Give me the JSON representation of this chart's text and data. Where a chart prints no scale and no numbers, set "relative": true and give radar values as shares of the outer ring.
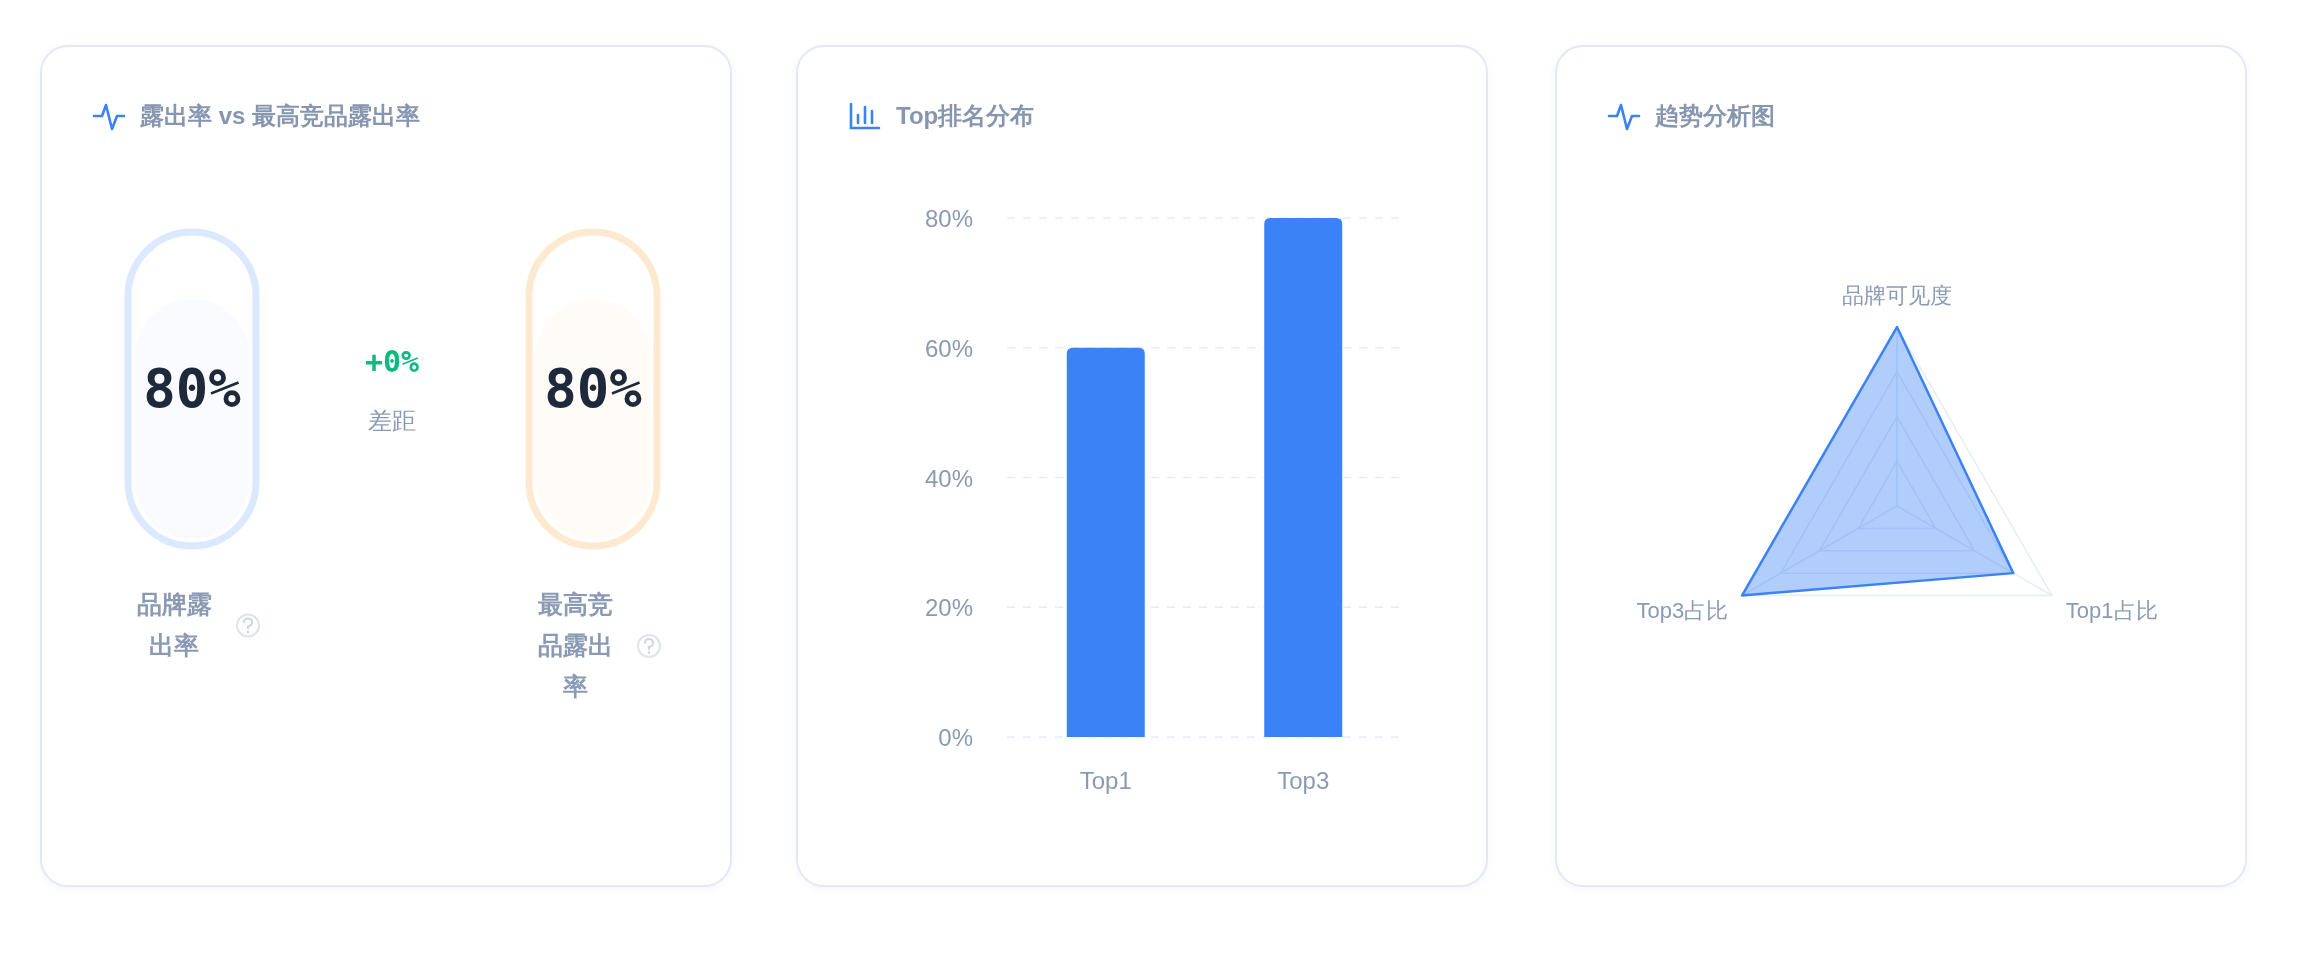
{
  "chart_data": [
    {
      "type": "other",
      "title": "露出率 vs 最高竞品露出率",
      "categories": [
        "品牌露出率",
        "最高竞品露出率"
      ],
      "values": [
        80,
        80
      ],
      "value_labels": [
        "80%",
        "80%"
      ],
      "colors": [
        "#dbe8fd",
        "#fde9d0"
      ],
      "annotations": [
        "+0%",
        "差距"
      ]
    },
    {
      "type": "bar",
      "title": "Top排名分布",
      "categories": [
        "Top1",
        "Top3"
      ],
      "values": [
        60,
        80
      ],
      "color": "#3b82f6",
      "ylim": [
        0,
        80
      ],
      "yticks": [
        {
          "value": 0,
          "label": "0%"
        },
        {
          "value": 20,
          "label": "20%"
        },
        {
          "value": 40,
          "label": "40%"
        },
        {
          "value": 60,
          "label": "60%"
        },
        {
          "value": 80,
          "label": "80%"
        }
      ],
      "grid": "y"
    },
    {
      "type": "radar",
      "title": "趋势分析图",
      "categories": [
        "品牌可见度",
        "Top1占比",
        "Top3占比"
      ],
      "relative": true,
      "series": [
        {
          "color": "#3b82f6",
          "values": [
            1,
            0.75,
            1
          ]
        }
      ]
    }
  ]
}
